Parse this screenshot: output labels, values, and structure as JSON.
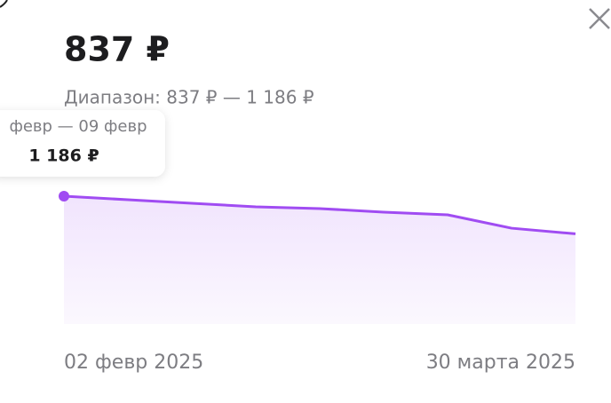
{
  "price": "837 ₽",
  "range": "Диапазон: 837 ₽ — 1 186 ₽",
  "tooltip": {
    "date": "февр — 09 февр",
    "value": "1 186 ₽"
  },
  "chart_data": {
    "type": "area",
    "categories": [
      "02 февр 2025",
      null,
      null,
      null,
      null,
      null,
      null,
      null,
      "30 марта 2025"
    ],
    "series": [
      {
        "color": "#a04cf2",
        "values": [
          1186,
          1153,
          1120,
          1087,
          1071,
          1038,
          1013,
          889,
          837
        ]
      }
    ],
    "ylim": [
      0,
      1186
    ]
  }
}
